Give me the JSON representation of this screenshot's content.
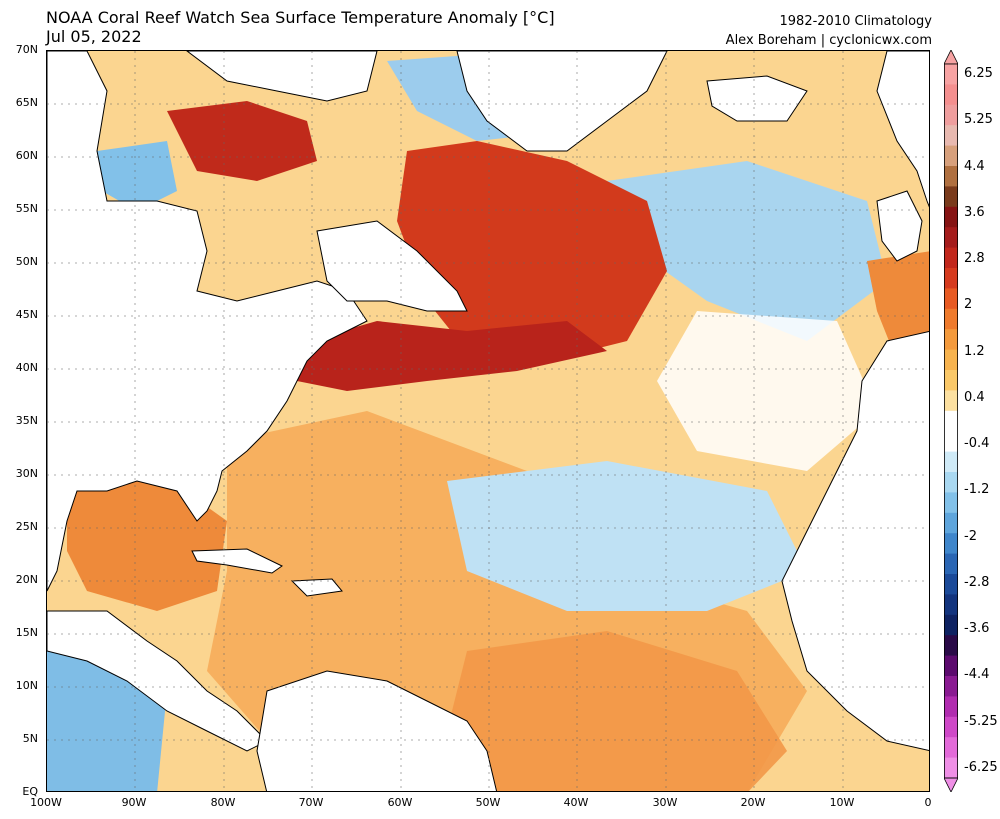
{
  "header": {
    "title_line1": "NOAA Coral Reef Watch Sea Surface Temperature Anomaly [°C]",
    "title_line2": "Jul 05, 2022",
    "climatology": "1982-2010 Climatology",
    "credit": "Alex Boreham | cyclonicwx.com"
  },
  "map": {
    "lon_range": [
      -100,
      0
    ],
    "lat_range": [
      0,
      70
    ],
    "lat_labels": [
      "70N",
      "65N",
      "60N",
      "55N",
      "50N",
      "45N",
      "40N",
      "35N",
      "30N",
      "25N",
      "20N",
      "15N",
      "10N",
      "5N",
      "EQ"
    ],
    "lon_labels": [
      "100W",
      "90W",
      "80W",
      "70W",
      "60W",
      "50W",
      "40W",
      "30W",
      "20W",
      "10W",
      "0"
    ]
  },
  "colorbar": {
    "labels": [
      "6.25",
      "5.25",
      "4.4",
      "3.6",
      "2.8",
      "2",
      "1.2",
      "0.4",
      "-0.4",
      "-1.2",
      "-2",
      "-2.8",
      "-3.6",
      "-4.4",
      "-5.25",
      "-6.25"
    ],
    "colors": [
      "#f7a3a3",
      "#f48f8f",
      "#ef9e9e",
      "#e8b9b0",
      "#d7a07c",
      "#b07040",
      "#7a3b1c",
      "#861414",
      "#a51c1c",
      "#c2271c",
      "#d63a1e",
      "#e85a22",
      "#ef7a2c",
      "#f49a3c",
      "#f7b34e",
      "#fac868",
      "#fce0a0",
      "#ffffff",
      "#ffffff",
      "#cfeaf7",
      "#a9d8f1",
      "#82c1e9",
      "#5ea5dc",
      "#3f86cb",
      "#2a66b4",
      "#1b4a99",
      "#13347e",
      "#0e2262",
      "#2a0a48",
      "#5c0a6e",
      "#8a1a92",
      "#b12cb0",
      "#cf48c8",
      "#e36ad9",
      "#ef8fe6"
    ]
  }
}
